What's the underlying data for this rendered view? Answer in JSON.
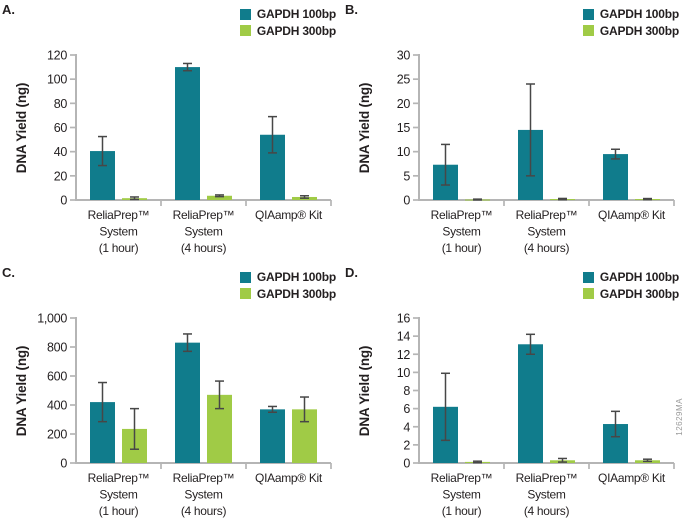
{
  "legend": {
    "items": [
      {
        "label": "GAPDH 100bp",
        "color": "#107c8c"
      },
      {
        "label": "GAPDH 300bp",
        "color": "#a0cb46"
      }
    ],
    "position": "top-right"
  },
  "watermark": {
    "text": "12629MA"
  },
  "axis_style": {
    "axis_color": "#b5b5b5",
    "error_color": "#474747",
    "text_color": "#231f20"
  },
  "chart_data": [
    {
      "panel_label": "A.",
      "type": "bar",
      "title": "",
      "xlabel": "",
      "ylabel": "DNA Yield (ng)",
      "ylim": [
        0,
        120
      ],
      "yticks": [
        0,
        20,
        40,
        60,
        80,
        100,
        120
      ],
      "ytick_labels": [
        "0",
        "20",
        "40",
        "60",
        "80",
        "100",
        "120"
      ],
      "grid": false,
      "legend_position": "top-right",
      "categories": [
        {
          "lines": [
            "ReliaPrep™",
            "System",
            "(1 hour)"
          ]
        },
        {
          "lines": [
            "ReliaPrep™",
            "System",
            "(4 hours)"
          ]
        },
        {
          "lines": [
            "QIAamp® Kit"
          ]
        }
      ],
      "series": [
        {
          "name": "GAPDH 100bp",
          "color": "#107c8c",
          "values": [
            40.5,
            110,
            54
          ],
          "errors": [
            12,
            3,
            15
          ]
        },
        {
          "name": "GAPDH 300bp",
          "color": "#a0cb46",
          "values": [
            1.5,
            3.5,
            2.5
          ],
          "errors": [
            1,
            0.7,
            1
          ]
        }
      ]
    },
    {
      "panel_label": "B.",
      "type": "bar",
      "title": "",
      "xlabel": "",
      "ylabel": "DNA Yield (ng)",
      "ylim": [
        0,
        30
      ],
      "yticks": [
        0,
        5,
        10,
        15,
        20,
        25,
        30
      ],
      "ytick_labels": [
        "0",
        "5",
        "10",
        "15",
        "20",
        "25",
        "30"
      ],
      "grid": false,
      "legend_position": "top-right",
      "categories": [
        {
          "lines": [
            "ReliaPrep™",
            "System",
            "(1 hour)"
          ]
        },
        {
          "lines": [
            "ReliaPrep™",
            "System",
            "(4 hours)"
          ]
        },
        {
          "lines": [
            "QIAamp® Kit"
          ]
        }
      ],
      "series": [
        {
          "name": "GAPDH 100bp",
          "color": "#107c8c",
          "values": [
            7.3,
            14.5,
            9.5
          ],
          "errors": [
            4.2,
            9.5,
            1
          ]
        },
        {
          "name": "GAPDH 300bp",
          "color": "#a0cb46",
          "values": [
            0.1,
            0.2,
            0.2
          ],
          "errors": [
            0.08,
            0.12,
            0.1
          ]
        }
      ]
    },
    {
      "panel_label": "C.",
      "type": "bar",
      "title": "",
      "xlabel": "",
      "ylabel": "DNA Yield (ng)",
      "ylim": [
        0,
        1000
      ],
      "yticks": [
        0,
        200,
        400,
        600,
        800,
        1000
      ],
      "ytick_labels": [
        "0",
        "200",
        "400",
        "600",
        "800",
        "1,000"
      ],
      "grid": false,
      "legend_position": "top-right",
      "categories": [
        {
          "lines": [
            "ReliaPrep™",
            "System",
            "(1 hour)"
          ]
        },
        {
          "lines": [
            "ReliaPrep™",
            "System",
            "(4 hours)"
          ]
        },
        {
          "lines": [
            "QIAamp® Kit"
          ]
        }
      ],
      "series": [
        {
          "name": "GAPDH 100bp",
          "color": "#107c8c",
          "values": [
            420,
            830,
            370
          ],
          "errors": [
            135,
            60,
            20
          ]
        },
        {
          "name": "GAPDH 300bp",
          "color": "#a0cb46",
          "values": [
            235,
            470,
            370
          ],
          "errors": [
            140,
            95,
            85
          ]
        }
      ]
    },
    {
      "panel_label": "D.",
      "type": "bar",
      "title": "",
      "xlabel": "",
      "ylabel": "DNA Yield (ng)",
      "ylim": [
        0,
        16
      ],
      "yticks": [
        0,
        2,
        4,
        6,
        8,
        10,
        12,
        14,
        16
      ],
      "ytick_labels": [
        "0",
        "2",
        "4",
        "6",
        "8",
        "10",
        "12",
        "14",
        "16"
      ],
      "grid": false,
      "legend_position": "top-right",
      "categories": [
        {
          "lines": [
            "ReliaPrep™",
            "System",
            "(1 hour)"
          ]
        },
        {
          "lines": [
            "ReliaPrep™",
            "System",
            "(4 hours)"
          ]
        },
        {
          "lines": [
            "QIAamp® Kit"
          ]
        }
      ],
      "series": [
        {
          "name": "GAPDH 100bp",
          "color": "#107c8c",
          "values": [
            6.2,
            13.1,
            4.3
          ],
          "errors": [
            3.7,
            1.1,
            1.4
          ]
        },
        {
          "name": "GAPDH 300bp",
          "color": "#a0cb46",
          "values": [
            0.12,
            0.3,
            0.3
          ],
          "errors": [
            0.08,
            0.2,
            0.12
          ]
        }
      ]
    }
  ]
}
